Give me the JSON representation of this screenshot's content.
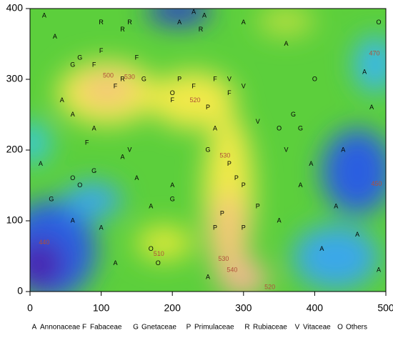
{
  "chart_data": {
    "type": "scatter",
    "xlim": [
      0,
      500
    ],
    "ylim": [
      0,
      400
    ],
    "xticks": [
      0,
      100,
      200,
      300,
      400,
      500
    ],
    "yticks": [
      0,
      100,
      200,
      300,
      400
    ],
    "contour_labels": [
      {
        "value": 500,
        "x": 110,
        "y": 305
      },
      {
        "value": 530,
        "x": 140,
        "y": 303
      },
      {
        "value": 520,
        "x": 232,
        "y": 270
      },
      {
        "value": 530,
        "x": 274,
        "y": 192
      },
      {
        "value": 510,
        "x": 181,
        "y": 53
      },
      {
        "value": 530,
        "x": 272,
        "y": 46
      },
      {
        "value": 540,
        "x": 284,
        "y": 30
      },
      {
        "value": 520,
        "x": 337,
        "y": 6
      },
      {
        "value": 440,
        "x": 20,
        "y": 69
      },
      {
        "value": 450,
        "x": 487,
        "y": 152
      },
      {
        "value": 470,
        "x": 484,
        "y": 336
      }
    ],
    "series": [
      {
        "name": "Annonaceae",
        "symbol": "A",
        "x": [
          20,
          35,
          60,
          90,
          130,
          150,
          170,
          210,
          230,
          245,
          260,
          380,
          395,
          410,
          430,
          460,
          480,
          490,
          60,
          100,
          120,
          250,
          300,
          360,
          440,
          470,
          15,
          45,
          200,
          350
        ],
        "values": [
          390,
          360,
          250,
          230,
          190,
          160,
          120,
          380,
          395,
          390,
          230,
          150,
          180,
          60,
          120,
          80,
          260,
          30,
          100,
          90,
          40,
          20,
          380,
          350,
          200,
          310,
          180,
          270,
          150,
          100
        ]
      },
      {
        "name": "Fabaceae",
        "symbol": "F",
        "x": [
          90,
          100,
          120,
          150,
          200,
          230,
          280,
          260,
          80
        ],
        "values": [
          320,
          340,
          290,
          330,
          270,
          290,
          280,
          300,
          210
        ]
      },
      {
        "name": "Gnetaceae",
        "symbol": "G",
        "x": [
          60,
          70,
          160,
          90,
          30,
          200,
          250,
          370,
          380
        ],
        "values": [
          320,
          330,
          300,
          170,
          130,
          130,
          200,
          250,
          230
        ]
      },
      {
        "name": "Primulaceae",
        "symbol": "P",
        "x": [
          210,
          250,
          280,
          290,
          300,
          270,
          320,
          260,
          300
        ],
        "values": [
          300,
          260,
          180,
          160,
          150,
          110,
          120,
          90,
          90
        ]
      },
      {
        "name": "Rubiaceae",
        "symbol": "R",
        "x": [
          130,
          140,
          100,
          240,
          130
        ],
        "values": [
          370,
          380,
          380,
          370,
          300
        ]
      },
      {
        "name": "Vitaceae",
        "symbol": "V",
        "x": [
          300,
          320,
          360,
          280,
          140
        ],
        "values": [
          290,
          240,
          200,
          300,
          200
        ]
      },
      {
        "name": "Others",
        "symbol": "O",
        "x": [
          60,
          70,
          200,
          350,
          170,
          180,
          490,
          400
        ],
        "values": [
          160,
          150,
          280,
          230,
          60,
          40,
          380,
          300
        ]
      }
    ]
  }
}
